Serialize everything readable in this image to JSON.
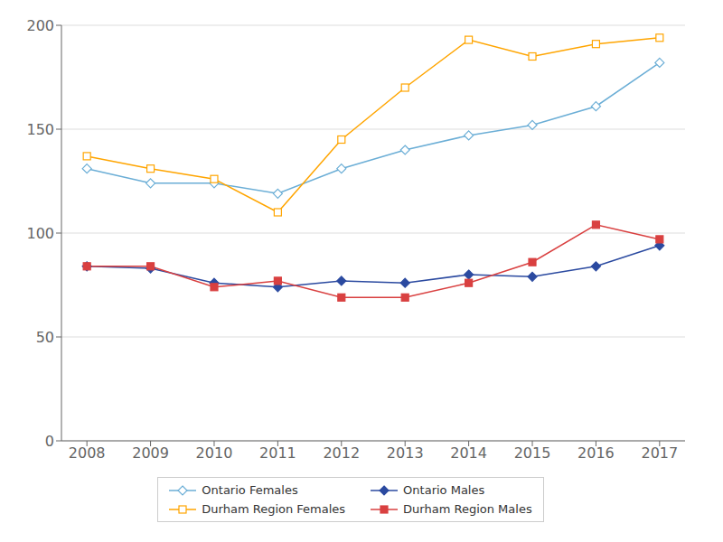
{
  "chart_data": {
    "type": "line",
    "x": [
      2008,
      2009,
      2010,
      2011,
      2012,
      2013,
      2014,
      2015,
      2016,
      2017
    ],
    "series": [
      {
        "name": "Ontario Females",
        "color": "#6BAED6",
        "marker": "diamond_open",
        "values": [
          131,
          124,
          124,
          119,
          131,
          140,
          147,
          152,
          161,
          182
        ]
      },
      {
        "name": "Ontario Males",
        "color": "#2B4AA0",
        "marker": "diamond",
        "values": [
          84,
          83,
          76,
          74,
          77,
          76,
          80,
          79,
          84,
          94
        ]
      },
      {
        "name": "Durham Region Females",
        "color": "#FFA500",
        "marker": "square_open",
        "values": [
          137,
          131,
          126,
          110,
          145,
          170,
          193,
          185,
          191,
          194
        ]
      },
      {
        "name": "Durham Region Males",
        "color": "#D94040",
        "marker": "square",
        "values": [
          84,
          84,
          74,
          77,
          69,
          69,
          76,
          86,
          104,
          97
        ]
      }
    ],
    "xlim": [
      2007.6,
      2017.4
    ],
    "xticks": [
      2008,
      2009,
      2010,
      2011,
      2012,
      2013,
      2014,
      2015,
      2016,
      2017
    ],
    "ylim": [
      0,
      200
    ],
    "yticks": [
      0,
      50,
      100,
      150,
      200
    ],
    "grid": "y",
    "legend": "bottom"
  }
}
